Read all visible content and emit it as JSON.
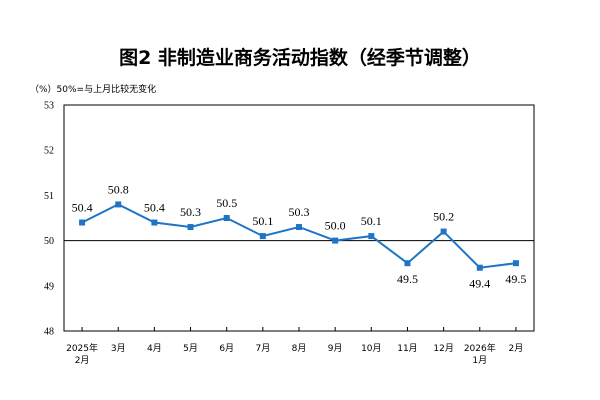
{
  "title": "图2  非制造业商务活动指数（经季节调整）",
  "unit_note": "（%）50%=与上月比较无变化",
  "chart_data": {
    "type": "line",
    "title": "图2  非制造业商务活动指数（经季节调整）",
    "categories": [
      [
        "2025年",
        "2月"
      ],
      [
        "3月"
      ],
      [
        "4月"
      ],
      [
        "5月"
      ],
      [
        "6月"
      ],
      [
        "7月"
      ],
      [
        "8月"
      ],
      [
        "9月"
      ],
      [
        "10月"
      ],
      [
        "11月"
      ],
      [
        "12月"
      ],
      [
        "2026年",
        "1月"
      ],
      [
        "2月"
      ]
    ],
    "series": [
      {
        "values": [
          50.4,
          50.8,
          50.4,
          50.3,
          50.5,
          50.1,
          50.3,
          50.0,
          50.1,
          49.5,
          50.2,
          49.4,
          49.5
        ],
        "labels": [
          "50.4",
          "50.8",
          "50.4",
          "50.3",
          "50.5",
          "50.1",
          "50.3",
          "50.0",
          "50.1",
          "49.5",
          "50.2",
          "49.4",
          "49.5"
        ],
        "color": "#1f74c4"
      }
    ],
    "ylim": [
      48,
      53
    ],
    "yticks": [
      "48",
      "49",
      "50",
      "51",
      "52",
      "53"
    ],
    "reference_line": 50,
    "grid": false,
    "legend": "none"
  }
}
